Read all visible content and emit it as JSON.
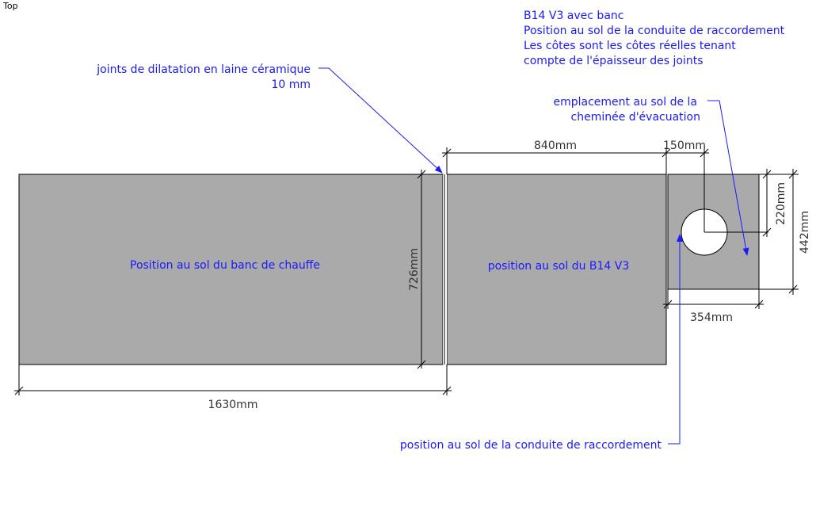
{
  "view_label": "Top",
  "notes": {
    "title": "B14 V3 avec banc",
    "line2": "Position au sol de la conduite de raccordement",
    "line3": "Les côtes sont les côtes réelles tenant",
    "line4": "compte de l'épaisseur des joints"
  },
  "callouts": {
    "joints_line1": "joints de dilatation en laine céramique",
    "joints_line2": "10 mm",
    "chimney_line1": "emplacement au sol de la",
    "chimney_line2": "cheminée d'évacuation",
    "conduit": "position au sol de la conduite de raccordement"
  },
  "blocks": {
    "bench_label": "Position au sol du banc de chauffe",
    "stove_label": "position au sol du B14 V3"
  },
  "dimensions": {
    "bench_depth": "726mm",
    "bench_total_width": "1630mm",
    "stove_width": "840mm",
    "gap": "150mm",
    "chimney_offset": "220mm",
    "chimney_block_height": "442mm",
    "chimney_block_width": "354mm"
  },
  "colors": {
    "block_fill": "#aaaaaa",
    "annotation_text": "#1a1aff",
    "line": "#000000"
  }
}
